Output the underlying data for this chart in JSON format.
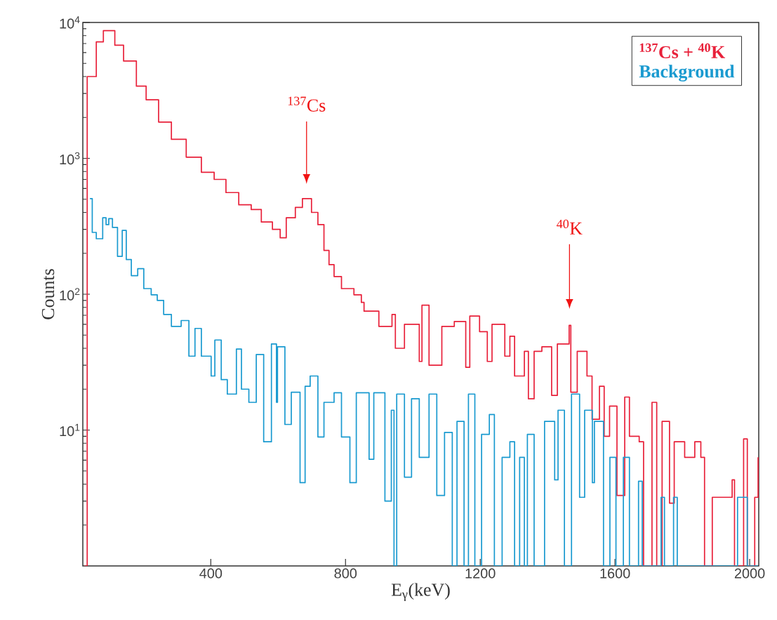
{
  "chart_data": {
    "type": "step",
    "xlabel": "E$_{γ}$(keV)",
    "ylabel": "Counts",
    "log": "y",
    "legend": "top right",
    "xlim": [
      20,
      2027
    ],
    "ylim": [
      1,
      10000
    ],
    "xticks": [
      400,
      800,
      1200,
      1600,
      2000
    ],
    "yticks": [
      {
        "value": 10,
        "label": "10$^{1}$"
      },
      {
        "value": 100,
        "label": "10$^{2}$"
      },
      {
        "value": 1000,
        "label": "10$^{3}$"
      },
      {
        "value": 10000,
        "label": "10$^{4}$"
      }
    ],
    "annotations": [
      "$^{137}$Cs",
      "$^{40}$K"
    ],
    "series": [
      {
        "name": "$^{137}$Cs + $^{40}$K",
        "color": "#e8213a",
        "x": [
          25,
          33,
          60,
          81,
          115,
          141,
          179,
          208,
          245,
          283,
          327,
          372,
          410,
          445,
          483,
          520,
          550,
          583,
          606,
          624,
          651,
          672,
          699,
          718,
          736,
          751,
          766,
          788,
          825,
          847,
          855,
          899,
          938,
          948,
          975,
          1019,
          1027,
          1048,
          1086,
          1123,
          1157,
          1169,
          1198,
          1221,
          1235,
          1273,
          1288,
          1302,
          1331,
          1343,
          1360,
          1383,
          1412,
          1429,
          1450,
          1464,
          1469,
          1488,
          1517,
          1532,
          1554,
          1568,
          1584,
          1606,
          1629,
          1643,
          1672,
          1685,
          1710,
          1724,
          1740,
          1762,
          1776,
          1807,
          1837,
          1855,
          1866,
          1889,
          1926,
          1948,
          1955,
          1982,
          1993,
          2015,
          2025
        ],
        "values": [
          1,
          4000,
          7200,
          8700,
          6800,
          5200,
          3400,
          2700,
          1850,
          1380,
          1020,
          790,
          700,
          560,
          455,
          420,
          340,
          300,
          260,
          365,
          435,
          505,
          400,
          325,
          210,
          165,
          135,
          110,
          99,
          87,
          75,
          58,
          71,
          40,
          60,
          32,
          83,
          30,
          58,
          63,
          29,
          69,
          53,
          32,
          60,
          35,
          49,
          25,
          38,
          17,
          38,
          41,
          18,
          43,
          43,
          59,
          19,
          38,
          25,
          12,
          21,
          9,
          15,
          3.3,
          17.5,
          9,
          8.2,
          1,
          16,
          1,
          11.6,
          2.9,
          8.2,
          6.3,
          8.2,
          6.3,
          1,
          3.2,
          3.2,
          4.3,
          1,
          8.6,
          1,
          3.2,
          6.3
        ]
      },
      {
        "name": "Background",
        "color": "#1a9ad0",
        "x": [
          41,
          48,
          60,
          79,
          89,
          97,
          108,
          123,
          137,
          149,
          164,
          183,
          201,
          223,
          241,
          260,
          283,
          312,
          335,
          353,
          372,
          401,
          412,
          431,
          449,
          476,
          491,
          513,
          535,
          557,
          580,
          595,
          598,
          620,
          639,
          665,
          680,
          695,
          718,
          736,
          766,
          788,
          813,
          832,
          870,
          884,
          917,
          936,
          944,
          952,
          975,
          996,
          1019,
          1048,
          1071,
          1094,
          1117,
          1131,
          1152,
          1165,
          1184,
          1204,
          1227,
          1242,
          1265,
          1288,
          1302,
          1317,
          1331,
          1340,
          1360,
          1391,
          1421,
          1431,
          1450,
          1471,
          1495,
          1510,
          1533,
          1539,
          1566,
          1585,
          1603,
          1625,
          1643,
          1670,
          1681,
          1737,
          1747,
          1774,
          1785,
          1964,
          1993,
          2025
        ],
        "values": [
          505,
          285,
          256,
          365,
          325,
          360,
          310,
          190,
          295,
          180,
          137,
          154,
          110,
          99,
          90,
          71,
          58,
          64,
          35,
          56,
          35,
          25,
          46,
          23.5,
          18.4,
          39.5,
          20,
          16,
          36,
          8.2,
          43,
          16,
          41,
          11,
          19,
          4.1,
          21,
          25,
          8.9,
          16,
          18.8,
          8.9,
          4.1,
          18.8,
          6.1,
          18.8,
          3,
          14,
          1,
          18.4,
          4.5,
          17,
          6.3,
          18.4,
          3.3,
          9.6,
          1,
          11.6,
          1,
          18.4,
          1,
          9.3,
          13,
          1,
          6.3,
          8.2,
          1,
          6.3,
          1,
          9.3,
          1,
          11.6,
          4.3,
          14,
          1,
          18.4,
          3.2,
          14,
          4.1,
          11.6,
          1,
          6.3,
          1,
          6.3,
          1,
          4.2,
          1,
          3.2,
          1,
          3.2,
          1,
          3.2,
          1,
          1
        ]
      }
    ]
  }
}
